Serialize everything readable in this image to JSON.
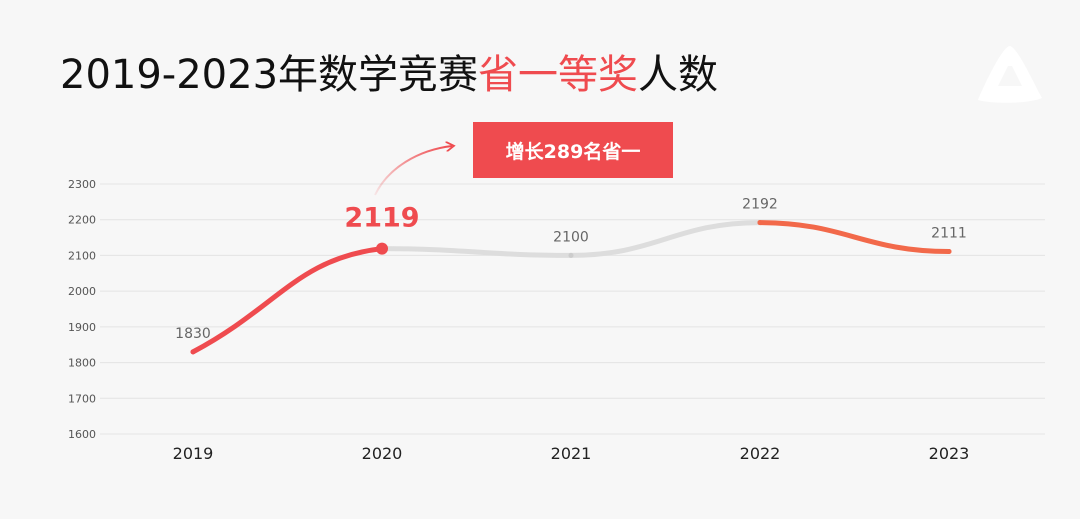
{
  "title": {
    "prefix": "2019-2023年数学竞赛",
    "highlight": "省一等奖",
    "suffix": "人数"
  },
  "callout": "增长289名省一",
  "colors": {
    "accent": "#ef4b4f",
    "accent_orange": "#f2694a",
    "muted_line": "#dddddd",
    "grid": "#e4e4e4"
  },
  "chart_data": {
    "type": "line",
    "x": [
      "2019",
      "2020",
      "2021",
      "2022",
      "2023"
    ],
    "series": [
      {
        "values": [
          1830,
          2119,
          2100,
          2192,
          2111
        ]
      }
    ],
    "ylim": [
      1600,
      2300
    ],
    "yticks": [
      1600,
      1700,
      1800,
      1900,
      2000,
      2100,
      2200,
      2300
    ],
    "highlight_point": "2020",
    "grid": true,
    "legend": "none"
  }
}
